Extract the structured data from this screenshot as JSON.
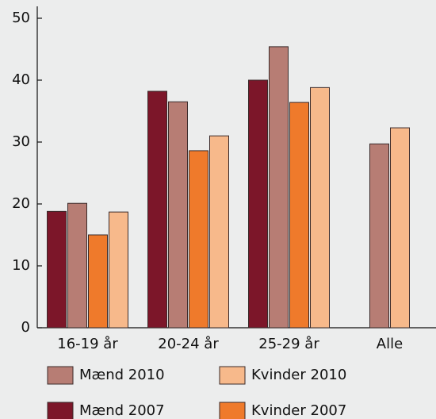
{
  "chart_data": {
    "type": "bar",
    "categories": [
      "16-19 år",
      "20-24 år",
      "25-29 år",
      "Alle"
    ],
    "series": [
      {
        "name": "Mænd 2007",
        "color": "#7c1629",
        "values": [
          18.8,
          38.2,
          40,
          null
        ]
      },
      {
        "name": "Mænd 2010",
        "color": "#b77d74",
        "values": [
          20.1,
          36.5,
          45.4,
          29.7
        ]
      },
      {
        "name": "Kvinder 2007",
        "color": "#ef7a2b",
        "values": [
          15,
          28.6,
          36.4,
          null
        ]
      },
      {
        "name": "Kvinder 2010",
        "color": "#f7b98b",
        "values": [
          18.7,
          31,
          38.8,
          32.3
        ]
      }
    ],
    "ylim": [
      0,
      50
    ],
    "yticks": [
      0,
      10,
      20,
      30,
      40,
      50
    ],
    "grid": false
  }
}
